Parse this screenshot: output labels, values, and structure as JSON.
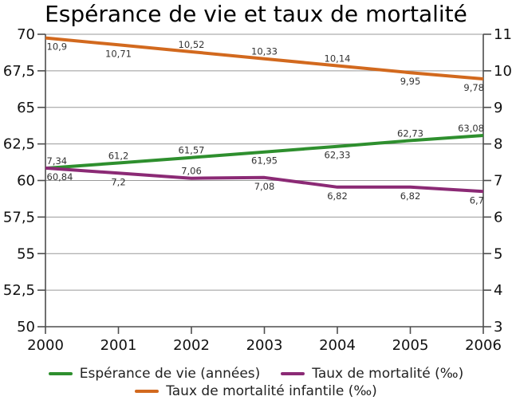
{
  "chart_data": {
    "type": "line",
    "title": "Espérance de vie et taux de mortalité",
    "x_labels": [
      "2000",
      "2001",
      "2002",
      "2003",
      "2004",
      "2005",
      "2006"
    ],
    "axes": {
      "left": {
        "min": 50,
        "max": 70,
        "tick_values": [
          70,
          67.5,
          65,
          62.5,
          60,
          57.5,
          55,
          52.5,
          50
        ],
        "tick_labels": [
          "70",
          "67,5",
          "65",
          "62,5",
          "60",
          "57,5",
          "55",
          "52,5",
          "50"
        ]
      },
      "right": {
        "min": 3,
        "max": 11,
        "tick_values": [
          11,
          10,
          9,
          8,
          7,
          6,
          5,
          4,
          3
        ],
        "tick_labels": [
          "11",
          "10",
          "9",
          "8",
          "7",
          "6",
          "5",
          "4",
          "3"
        ]
      }
    },
    "series": [
      {
        "name": "Espérance de vie (années)",
        "axis": "left",
        "color": "#2e8f2e",
        "values": [
          60.84,
          61.2,
          61.57,
          61.95,
          62.33,
          62.73,
          63.08
        ],
        "labels": [
          "60,84",
          "61,2",
          "61,57",
          "61,95",
          "62,33",
          "62,73",
          "63,08"
        ],
        "label_pos": [
          "below",
          "above",
          "above",
          "below",
          "below",
          "above",
          "above"
        ]
      },
      {
        "name": "Taux de mortalité (‰)",
        "axis": "right",
        "color": "#8b2a75",
        "values": [
          7.34,
          7.2,
          7.06,
          7.08,
          6.82,
          6.82,
          6.7
        ],
        "labels": [
          "7,34",
          "7,2",
          "7,06",
          "7,08",
          "6,82",
          "6,82",
          "6,7"
        ],
        "label_pos": [
          "above",
          "below",
          "above",
          "below",
          "below",
          "below",
          "below"
        ]
      },
      {
        "name": "Taux de mortalité infantile (‰)",
        "axis": "right",
        "color": "#d2691e",
        "values": [
          10.9,
          10.71,
          10.52,
          10.33,
          10.14,
          9.95,
          9.78
        ],
        "labels": [
          "10,9",
          "10,71",
          "10,52",
          "10,33",
          "10,14",
          "9,95",
          "9,78"
        ],
        "label_pos": [
          "below",
          "below",
          "above",
          "above",
          "above",
          "below",
          "below"
        ]
      }
    ],
    "legend_position": "bottom",
    "grid": true,
    "grid_color": "#999999",
    "axis_color": "#4d4d4d",
    "label_color": "#333333"
  }
}
